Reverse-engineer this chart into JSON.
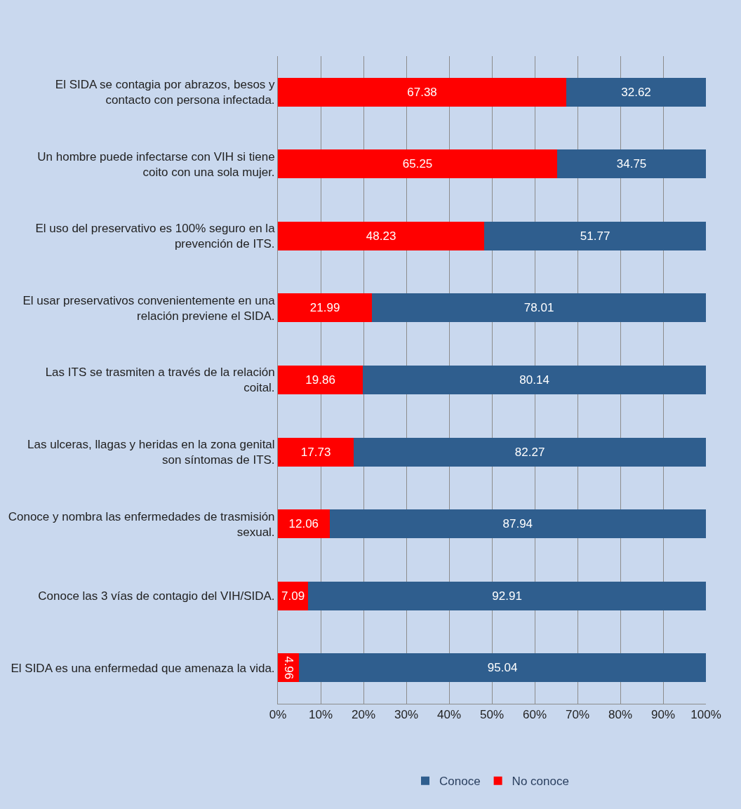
{
  "chart_data": {
    "type": "bar",
    "orientation": "horizontal",
    "stacked": true,
    "categories": [
      "El SIDA se contagia por abrazos, besos y contacto con persona infectada.",
      "Un hombre puede infectarse con VIH si tiene coito con una sola mujer.",
      "El uso del preservativo es 100% seguro en la prevención de ITS.",
      "El usar preservativos convenientemente en una relación previene el SIDA.",
      "Las ITS se trasmiten a través de la relación coital.",
      "Las ulceras, llagas y heridas en la zona genital son síntomas de ITS.",
      "Conoce y nombra las enfermedades de trasmisión sexual.",
      "Conoce las 3 vías de contagio del VIH/SIDA.",
      "El SIDA es una enfermedad que amenaza la vida."
    ],
    "series": [
      {
        "name": "No conoce",
        "color": "#ff0000",
        "values": [
          67.38,
          65.25,
          48.23,
          21.99,
          19.86,
          17.73,
          12.06,
          7.09,
          4.96
        ]
      },
      {
        "name": "Conoce",
        "color": "#2f5e8e",
        "values": [
          32.62,
          34.75,
          51.77,
          78.01,
          80.14,
          82.27,
          87.94,
          92.91,
          95.04
        ]
      }
    ],
    "xlim": [
      0,
      100
    ],
    "xticks": [
      {
        "value": 0,
        "label": "0%"
      },
      {
        "value": 10,
        "label": "10%"
      },
      {
        "value": 20,
        "label": "20%"
      },
      {
        "value": 30,
        "label": "30%"
      },
      {
        "value": 40,
        "label": "40%"
      },
      {
        "value": 50,
        "label": "50%"
      },
      {
        "value": 60,
        "label": "60%"
      },
      {
        "value": 70,
        "label": "70%"
      },
      {
        "value": 80,
        "label": "80%"
      },
      {
        "value": 90,
        "label": "90%"
      },
      {
        "value": 100,
        "label": "100%"
      }
    ],
    "grid": "x",
    "legend": "bottom",
    "data_labels": true
  }
}
